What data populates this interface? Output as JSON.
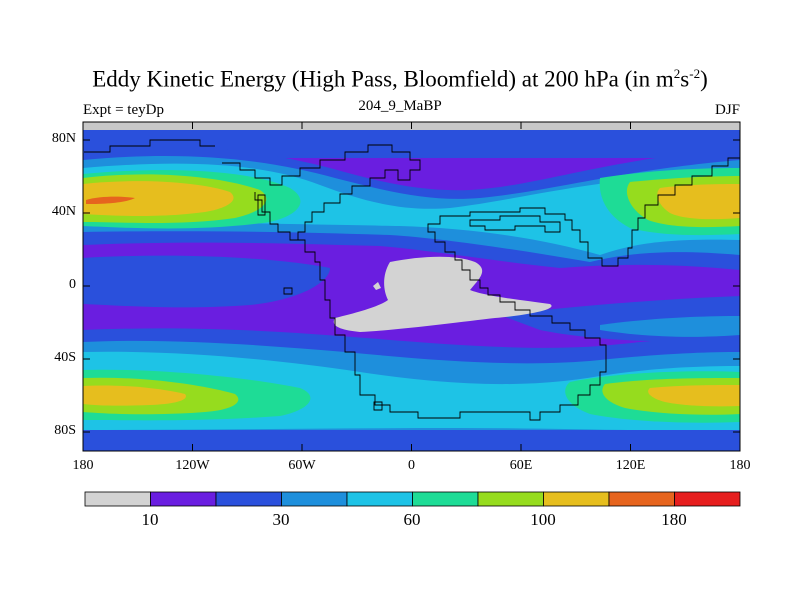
{
  "title": {
    "main": "Eddy Kinetic Energy (High Pass, Bloomfield) at 200 hPa (in m",
    "sup1": "2",
    "mid": "s",
    "sup2": "-2",
    "tail": ")"
  },
  "left_label": "Expt = teyDp",
  "center_label": "204_9_MaBP",
  "right_label": "DJF",
  "lat_labels": [
    "80N",
    "40N",
    "0",
    "40S",
    "80S"
  ],
  "lon_labels": [
    "180",
    "120W",
    "60W",
    "0",
    "60E",
    "120E",
    "180"
  ],
  "colorbar": {
    "colors": [
      "#d3d3d3",
      "#6a1ee0",
      "#2a50dc",
      "#1e8fdc",
      "#1ec3e6",
      "#1edc96",
      "#96dc1e",
      "#e6be1e",
      "#e6641e",
      "#e61e1e"
    ],
    "labels": [
      "10",
      "30",
      "60",
      "100",
      "180"
    ]
  },
  "palette": {
    "purple": "#6a1ee0",
    "blue": "#2a50dc",
    "midblue": "#1e8fdc",
    "cyan": "#1ec3e6",
    "teal": "#1edc96",
    "green": "#96dc1e",
    "yellow": "#e6be1e",
    "orange": "#e6641e",
    "gray": "#d3d3d3",
    "topstrip": "#c8c8c8"
  }
}
